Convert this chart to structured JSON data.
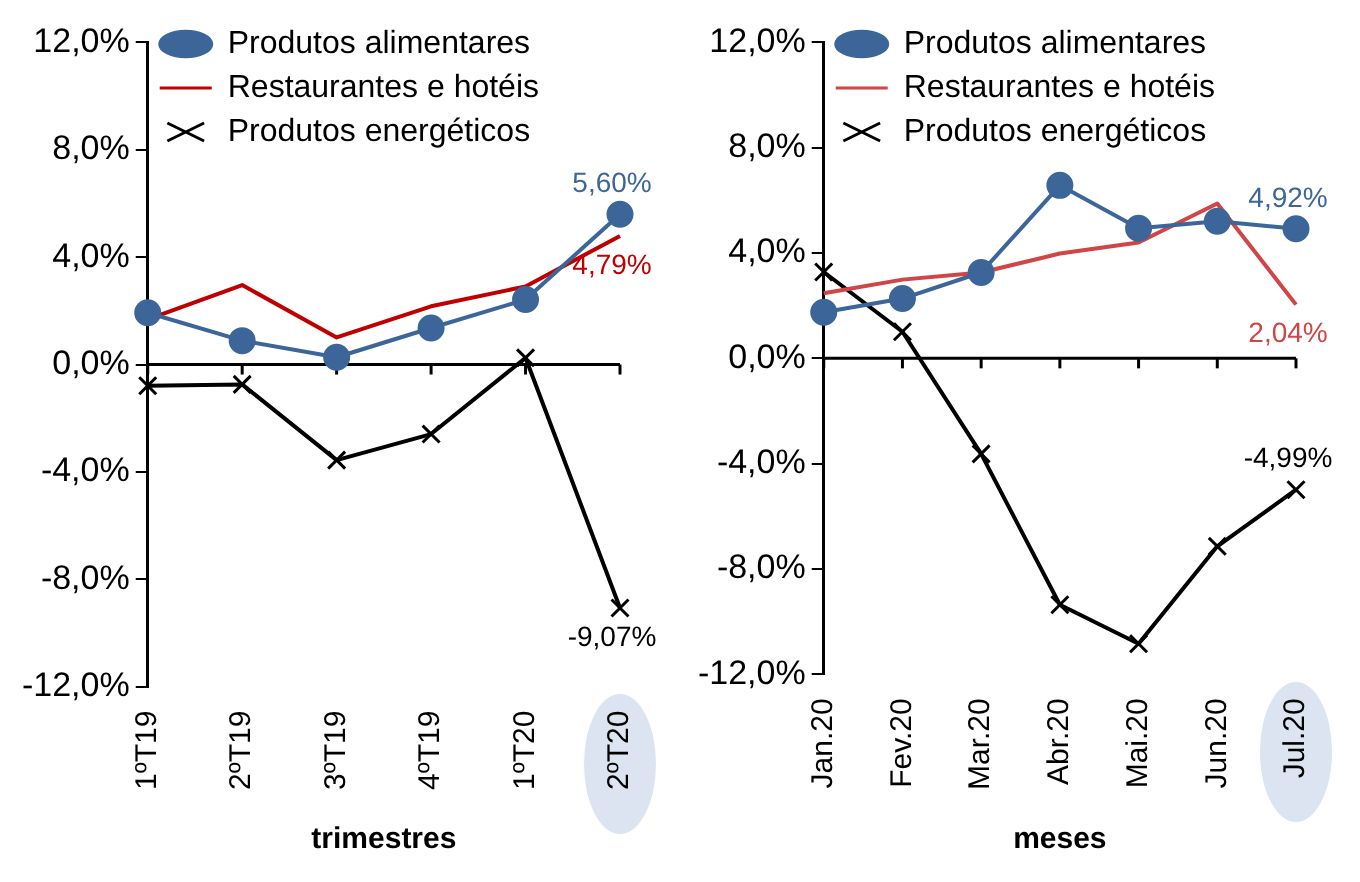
{
  "chart_data": [
    {
      "type": "line",
      "xlabel": "trimestres",
      "categories": [
        "1ºT19",
        "2ºT19",
        "3ºT19",
        "4ºT19",
        "1ºT20",
        "2ºT20"
      ],
      "ylim": [
        -12,
        12
      ],
      "yticks": [
        {
          "value": -12,
          "label": "-12,0%"
        },
        {
          "value": -8,
          "label": "-8,0%"
        },
        {
          "value": -4,
          "label": "-4,0%"
        },
        {
          "value": 0,
          "label": "0,0%"
        },
        {
          "value": 4,
          "label": "4,0%"
        },
        {
          "value": 8,
          "label": "8,0%"
        },
        {
          "value": 12,
          "label": "12,0%"
        }
      ],
      "grid": false,
      "legend": "top left",
      "ref_lines": [
        {
          "axis": "y",
          "value": 0,
          "color": "#000000"
        }
      ],
      "series": [
        {
          "name": "Produtos alimentares",
          "color": "#3c6699",
          "marker": "circle",
          "values": [
            1.93,
            0.89,
            0.27,
            1.36,
            2.42,
            5.6
          ],
          "value_labels": [
            null,
            null,
            null,
            null,
            null,
            "5,60%"
          ]
        },
        {
          "name": "Restaurantes e hotéis",
          "color": "#c00000",
          "marker": "none",
          "values": [
            1.68,
            2.96,
            1.01,
            2.17,
            2.91,
            4.79
          ],
          "value_labels": [
            null,
            null,
            null,
            null,
            null,
            "4,79%"
          ]
        },
        {
          "name": "Produtos energéticos",
          "color": "#000000",
          "marker": "cross",
          "values": [
            -0.79,
            -0.74,
            -3.56,
            -2.59,
            0.25,
            -9.07
          ],
          "value_labels": [
            null,
            null,
            null,
            null,
            null,
            "-9,07%"
          ]
        }
      ]
    },
    {
      "type": "line",
      "xlabel": "meses",
      "categories": [
        "Jan.20",
        "Fev.20",
        "Mar.20",
        "Abr.20",
        "Mai.20",
        "Jun.20",
        "Jul.20"
      ],
      "ylim": [
        -12,
        12
      ],
      "yticks": [
        {
          "value": -12,
          "label": "-12,0%"
        },
        {
          "value": -8,
          "label": "-8,0%"
        },
        {
          "value": -4,
          "label": "-4,0%"
        },
        {
          "value": 0,
          "label": "0,0%"
        },
        {
          "value": 4,
          "label": "4,0%"
        },
        {
          "value": 8,
          "label": "8,0%"
        },
        {
          "value": 12,
          "label": "12,0%"
        }
      ],
      "grid": false,
      "legend": "top left",
      "ref_lines": [
        {
          "axis": "y",
          "value": 0,
          "color": "#000000"
        }
      ],
      "series": [
        {
          "name": "Produtos alimentares",
          "color": "#3c6699",
          "marker": "circle",
          "values": [
            1.75,
            2.27,
            3.26,
            6.57,
            4.94,
            5.21,
            4.92
          ],
          "value_labels": [
            null,
            null,
            null,
            null,
            null,
            null,
            "4,92%"
          ]
        },
        {
          "name": "Restaurantes e hotéis",
          "color": "#d04545",
          "marker": "none",
          "values": [
            2.47,
            2.99,
            3.26,
            3.98,
            4.4,
            5.88,
            2.04
          ],
          "value_labels": [
            null,
            null,
            null,
            null,
            null,
            null,
            "2,04%"
          ]
        },
        {
          "name": "Produtos energéticos",
          "color": "#000000",
          "marker": "cross",
          "values": [
            3.28,
            1.01,
            -3.63,
            -9.36,
            -10.84,
            -7.14,
            -4.99
          ],
          "value_labels": [
            null,
            null,
            null,
            null,
            null,
            null,
            "-4,99%"
          ]
        }
      ]
    }
  ]
}
